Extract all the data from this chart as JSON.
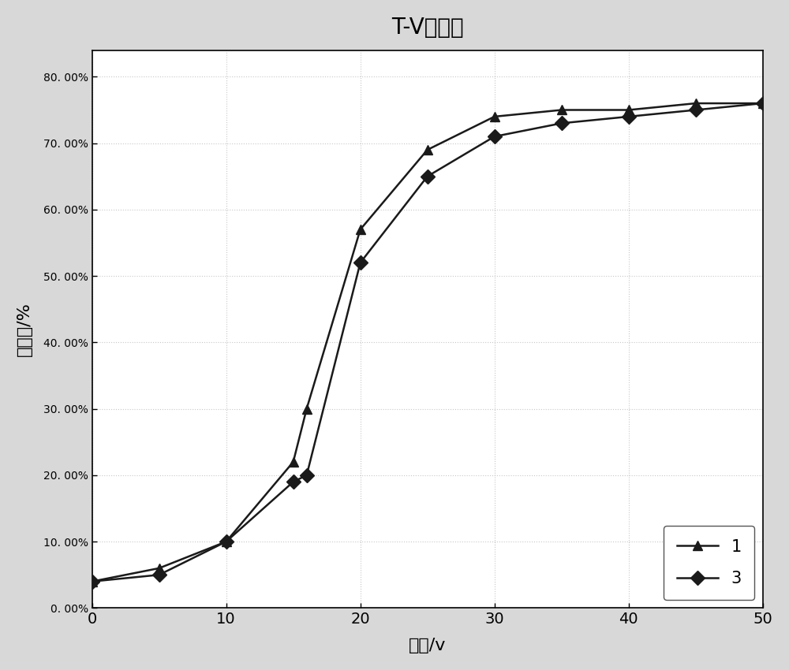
{
  "title": "T-V曲线图",
  "xlabel": "电压/v",
  "ylabel": "透过率/%",
  "series1_label": "1",
  "series2_label": "3",
  "series1_x": [
    0,
    5,
    10,
    15,
    16,
    20,
    25,
    30,
    35,
    40,
    45,
    50
  ],
  "series1_y": [
    0.04,
    0.06,
    0.1,
    0.22,
    0.3,
    0.57,
    0.69,
    0.74,
    0.75,
    0.75,
    0.76,
    0.76
  ],
  "series2_x": [
    0,
    5,
    10,
    15,
    16,
    20,
    25,
    30,
    35,
    40,
    45,
    50
  ],
  "series2_y": [
    0.04,
    0.05,
    0.1,
    0.19,
    0.2,
    0.52,
    0.65,
    0.71,
    0.73,
    0.74,
    0.75,
    0.76
  ],
  "xlim": [
    0,
    50
  ],
  "ylim": [
    0.0,
    0.84
  ],
  "yticks": [
    0.0,
    0.1,
    0.2,
    0.3,
    0.4,
    0.5,
    0.6,
    0.7,
    0.8
  ],
  "ytick_labels": [
    "0. 00%",
    "10. 00%",
    "20. 00%",
    "30. 00%",
    "40. 00%",
    "50. 00%",
    "60. 00%",
    "70. 00%",
    "80. 00%"
  ],
  "xticks": [
    0,
    10,
    20,
    30,
    40,
    50
  ],
  "line_color": "#1a1a1a",
  "marker1": "^",
  "marker2": "D",
  "markersize": 9,
  "linewidth": 1.8,
  "figure_background": "#d8d8d8",
  "plot_background": "#ffffff",
  "legend_loc": "lower right",
  "title_fontsize": 20,
  "label_fontsize": 16,
  "tick_fontsize": 14,
  "legend_fontsize": 15,
  "grid_color": "#c8c8c8"
}
